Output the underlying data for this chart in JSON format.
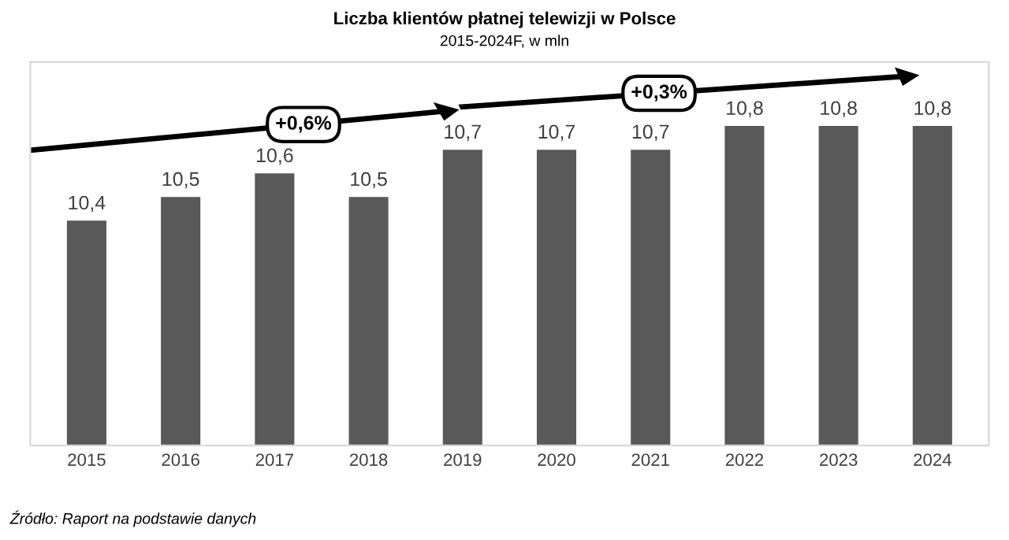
{
  "chart_data": {
    "type": "bar",
    "title": "Liczba klientów płatnej telewizji w Polsce",
    "subtitle": "2015-2024F, w mln",
    "categories": [
      "2015",
      "2016",
      "2017",
      "2018",
      "2019",
      "2020",
      "2021",
      "2022",
      "2023",
      "2024"
    ],
    "values": [
      10.4,
      10.5,
      10.6,
      10.5,
      10.7,
      10.7,
      10.7,
      10.8,
      10.8,
      10.8
    ],
    "value_labels": [
      "10,4",
      "10,5",
      "10,6",
      "10,5",
      "10,7",
      "10,7",
      "10,7",
      "10,8",
      "10,8",
      "10,8"
    ],
    "color": "#595959",
    "ylim": [
      9.45,
      11.07
    ],
    "tick_labels": "x",
    "grid": false,
    "legend": false,
    "annotations": [
      "+0,6%",
      "+0,3%",
      "Źródło: Raport na podstawie danych"
    ]
  }
}
